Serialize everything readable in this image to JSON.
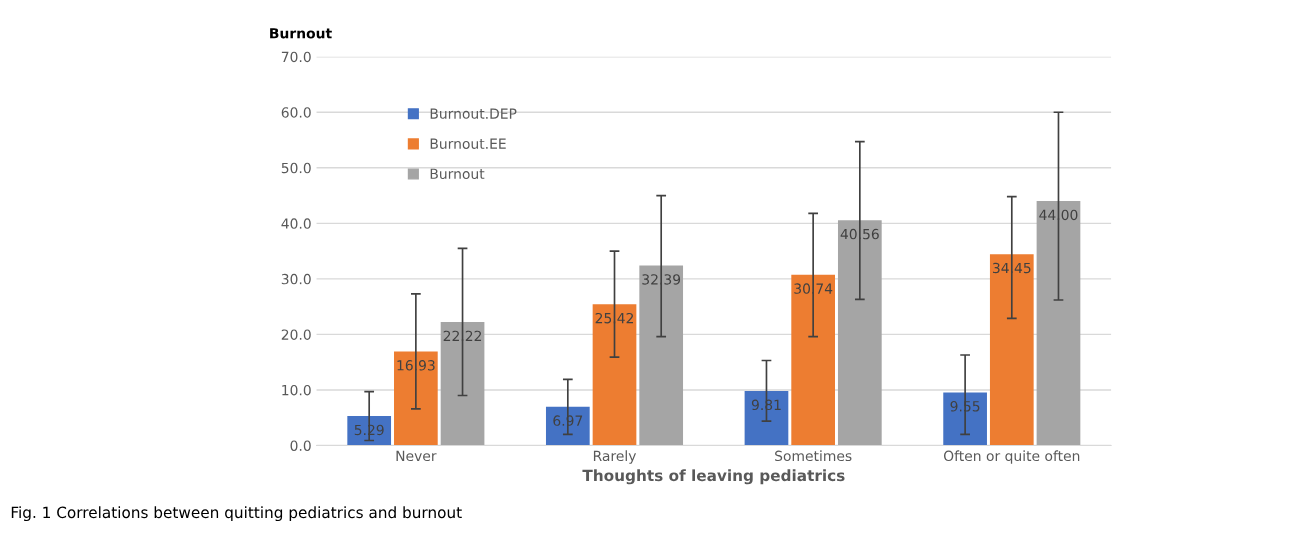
{
  "chart_data": {
    "type": "bar",
    "ylabel": "Burnout",
    "xlabel": "Thoughts of leaving pediatrics",
    "categories": [
      "Never",
      "Rarely",
      "Sometimes",
      "Often or quite often"
    ],
    "series": [
      {
        "name": "Burnout.DEP",
        "color": "#4472c4",
        "values": [
          5.29,
          6.97,
          9.81,
          9.55
        ],
        "errors": [
          [
            0.9,
            9.7
          ],
          [
            2.0,
            11.9
          ],
          [
            4.4,
            15.3
          ],
          [
            2.0,
            16.3
          ]
        ]
      },
      {
        "name": "Burnout.EE",
        "color": "#ed7d31",
        "values": [
          16.93,
          25.42,
          30.74,
          34.45
        ],
        "errors": [
          [
            6.6,
            27.3
          ],
          [
            15.9,
            35.0
          ],
          [
            19.6,
            41.8
          ],
          [
            22.9,
            44.8
          ]
        ]
      },
      {
        "name": "Burnout",
        "color": "#a5a5a5",
        "values": [
          22.22,
          32.39,
          40.56,
          44.0
        ],
        "errors": [
          [
            9.0,
            35.5
          ],
          [
            19.6,
            45.0
          ],
          [
            26.3,
            54.7
          ],
          [
            26.2,
            60.0
          ]
        ],
        "value_labels": [
          "22.22",
          "32.39",
          "40.56",
          "44.00"
        ]
      }
    ],
    "ylim": [
      0,
      70
    ],
    "yticks": [
      {
        "value": 0,
        "label": "0.0"
      },
      {
        "value": 10,
        "label": "10.0"
      },
      {
        "value": 20,
        "label": "20.0"
      },
      {
        "value": 30,
        "label": "30.0"
      },
      {
        "value": 40,
        "label": "40.0"
      },
      {
        "value": 50,
        "label": "50.0"
      },
      {
        "value": 60,
        "label": "60.0"
      },
      {
        "value": 70,
        "label": "70.0"
      }
    ],
    "grid": "y",
    "legend": "top left",
    "data_labels": true,
    "annotations": [
      "Fig. 1 Correlations between quitting pediatrics and burnout"
    ]
  }
}
